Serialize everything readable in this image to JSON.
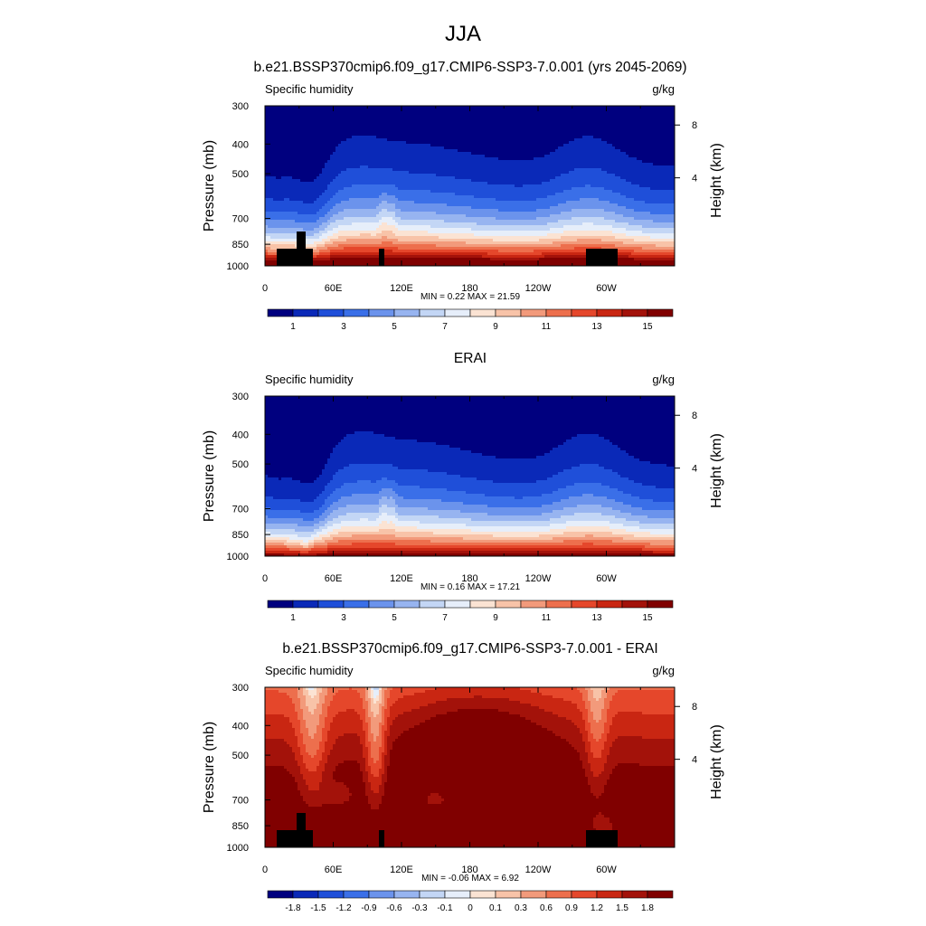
{
  "main_title": "JJA",
  "panels": [
    {
      "title": "b.e21.BSSP370cmip6.f09_g17.CMIP6-SSP3-7.0.001 (yrs 2045-2069)",
      "left_label": "Specific humidity",
      "right_label": "g/kg",
      "min_max": "MIN =   0.22  MAX =  21.59"
    },
    {
      "title": "ERAI",
      "left_label": "Specific humidity",
      "right_label": "g/kg",
      "min_max": "MIN =   0.16  MAX =  17.21"
    },
    {
      "title": "b.e21.BSSP370cmip6.f09_g17.CMIP6-SSP3-7.0.001 - ERAI",
      "left_label": "Specific humidity",
      "right_label": "g/kg",
      "min_max": "MIN =  -0.06  MAX =   6.92"
    }
  ],
  "axes": {
    "ylabel": "Pressure (mb)",
    "y2label": "Height (km)",
    "pressure_ticks": [
      "300",
      "400",
      "500",
      "700",
      "850",
      "1000"
    ],
    "height_ticks": [
      "8",
      "4"
    ],
    "x_ticks": [
      "0",
      "60E",
      "120E",
      "180",
      "120W",
      "60W"
    ]
  },
  "colorbars": {
    "absolute_labels": [
      "1",
      "3",
      "5",
      "7",
      "9",
      "11",
      "13",
      "15"
    ],
    "difference_labels": [
      "-1.8",
      "-1.5",
      "-1.2",
      "-0.9",
      "-0.6",
      "-0.3",
      "-0.1",
      "0",
      "0.1",
      "0.3",
      "0.6",
      "0.9",
      "1.2",
      "1.5",
      "1.8"
    ],
    "colors": [
      "#00007f",
      "#0a29b8",
      "#1f4fd9",
      "#3a6fe8",
      "#6b93ec",
      "#97b4f0",
      "#c3d6f5",
      "#e6eefa",
      "#fbe3d3",
      "#f8c3a8",
      "#f29a7b",
      "#ed6f4d",
      "#e5472b",
      "#c92612",
      "#a3120a",
      "#800000"
    ]
  },
  "chart_data": [
    {
      "type": "heatmap",
      "title": "b.e21.BSSP370cmip6.f09_g17.CMIP6-SSP3-7.0.001 (yrs 2045-2069)",
      "xlabel": "",
      "ylabel": "Pressure (mb)",
      "y2label": "Height (km)",
      "units": "g/kg",
      "y_scale": "log-pressure",
      "ylim": [
        1000,
        300
      ],
      "x_ticks": [
        "0",
        "60E",
        "120E",
        "180",
        "120W",
        "60W"
      ],
      "contour_levels": [
        1,
        2,
        3,
        4,
        5,
        6,
        7,
        8,
        9,
        10,
        11,
        12,
        13,
        14,
        15
      ],
      "min": 0.22,
      "max": 21.59
    },
    {
      "type": "heatmap",
      "title": "ERAI",
      "xlabel": "",
      "ylabel": "Pressure (mb)",
      "y2label": "Height (km)",
      "units": "g/kg",
      "y_scale": "log-pressure",
      "ylim": [
        1000,
        300
      ],
      "x_ticks": [
        "0",
        "60E",
        "120E",
        "180",
        "120W",
        "60W"
      ],
      "contour_levels": [
        1,
        2,
        3,
        4,
        5,
        6,
        7,
        8,
        9,
        10,
        11,
        12,
        13,
        14,
        15
      ],
      "min": 0.16,
      "max": 17.21
    },
    {
      "type": "heatmap",
      "title": "b.e21.BSSP370cmip6.f09_g17.CMIP6-SSP3-7.0.001 - ERAI",
      "xlabel": "",
      "ylabel": "Pressure (mb)",
      "y2label": "Height (km)",
      "units": "g/kg",
      "y_scale": "log-pressure",
      "ylim": [
        1000,
        300
      ],
      "x_ticks": [
        "0",
        "60E",
        "120E",
        "180",
        "120W",
        "60W"
      ],
      "contour_levels": [
        -1.8,
        -1.5,
        -1.2,
        -0.9,
        -0.6,
        -0.3,
        -0.1,
        0,
        0.1,
        0.3,
        0.6,
        0.9,
        1.2,
        1.5,
        1.8
      ],
      "min": -0.06,
      "max": 6.92
    }
  ]
}
